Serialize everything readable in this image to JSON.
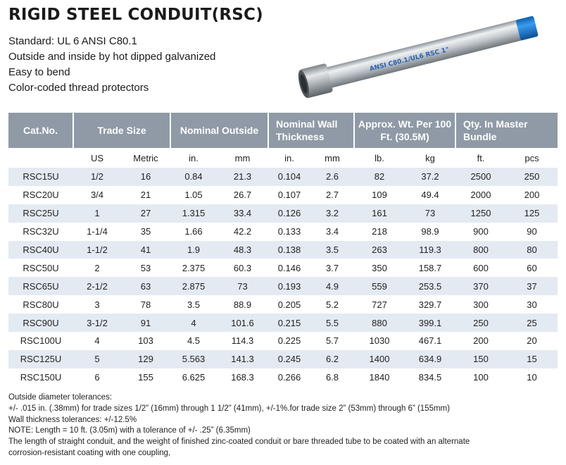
{
  "title": "RIGID STEEL CONDUIT(RSC)",
  "specs": [
    "Standard: UL 6  ANSI C80.1",
    "Outside and inside by hot dipped galvanized",
    "Easy to bend",
    "Color-coded thread protectors"
  ],
  "pipe_image": {
    "label": "ANSI C80.1/UL6  RSC 1\"",
    "cap_color": "#1f7fd6",
    "body_color": "#c9cfd4"
  },
  "table": {
    "headers": [
      "Cat.No.",
      "Trade Size",
      "Nominal Outside",
      "Nominal Wall Thickness",
      "Approx. Wt. Per 100 Ft. (30.5M)",
      "Qty. In Master Bundle"
    ],
    "subheaders": [
      "",
      "US",
      "Metric",
      "in.",
      "mm",
      "in.",
      "mm",
      "lb.",
      "kg",
      "ft.",
      "pcs"
    ],
    "rows": [
      [
        "RSC15U",
        "1/2",
        "16",
        "0.84",
        "21.3",
        "0.104",
        "2.6",
        "82",
        "37.2",
        "2500",
        "250"
      ],
      [
        "RSC20U",
        "3/4",
        "21",
        "1.05",
        "26.7",
        "0.107",
        "2.7",
        "109",
        "49.4",
        "2000",
        "200"
      ],
      [
        "RSC25U",
        "1",
        "27",
        "1.315",
        "33.4",
        "0.126",
        "3.2",
        "161",
        "73",
        "1250",
        "125"
      ],
      [
        "RSC32U",
        "1-1/4",
        "35",
        "1.66",
        "42.2",
        "0.133",
        "3.4",
        "218",
        "98.9",
        "900",
        "90"
      ],
      [
        "RSC40U",
        "1-1/2",
        "41",
        "1.9",
        "48.3",
        "0.138",
        "3.5",
        "263",
        "119.3",
        "800",
        "80"
      ],
      [
        "RSC50U",
        "2",
        "53",
        "2.375",
        "60.3",
        "0.146",
        "3.7",
        "350",
        "158.7",
        "600",
        "60"
      ],
      [
        "RSC65U",
        "2-1/2",
        "63",
        "2.875",
        "73",
        "0.193",
        "4.9",
        "559",
        "253.5",
        "370",
        "37"
      ],
      [
        "RSC80U",
        "3",
        "78",
        "3.5",
        "88.9",
        "0.205",
        "5.2",
        "727",
        "329.7",
        "300",
        "30"
      ],
      [
        "RSC90U",
        "3-1/2",
        "91",
        "4",
        "101.6",
        "0.215",
        "5.5",
        "880",
        "399.1",
        "250",
        "25"
      ],
      [
        "RSC100U",
        "4",
        "103",
        "4.5",
        "114.3",
        "0.225",
        "5.7",
        "1030",
        "467.1",
        "200",
        "20"
      ],
      [
        "RSC125U",
        "5",
        "129",
        "5.563",
        "141.3",
        "0.245",
        "6.2",
        "1400",
        "634.9",
        "150",
        "15"
      ],
      [
        "RSC150U",
        "6",
        "155",
        "6.625",
        "168.3",
        "0.266",
        "6.8",
        "1840",
        "834.5",
        "100",
        "10"
      ]
    ]
  },
  "notes": [
    "Outside diameter tolerances:",
    "+/- .015 in. (.38mm) for trade sizes 1/2”  (16mm) through 1 1/2”  (41mm), +/-1%.for trade size 2”  (53mm) through 6”  (155mm)",
    "Wall thickness tolerances: +/-12.5%",
    "NOTE: Length = 10 ft. (3.05m) with a tolerance of +/- .25”  (6.35mm)",
    "The length of straight conduit, and the weight of finished zinc-coated conduit or bare threaded tube to be coated with an alternate",
    "corrosion-resistant coating with one coupling,"
  ]
}
